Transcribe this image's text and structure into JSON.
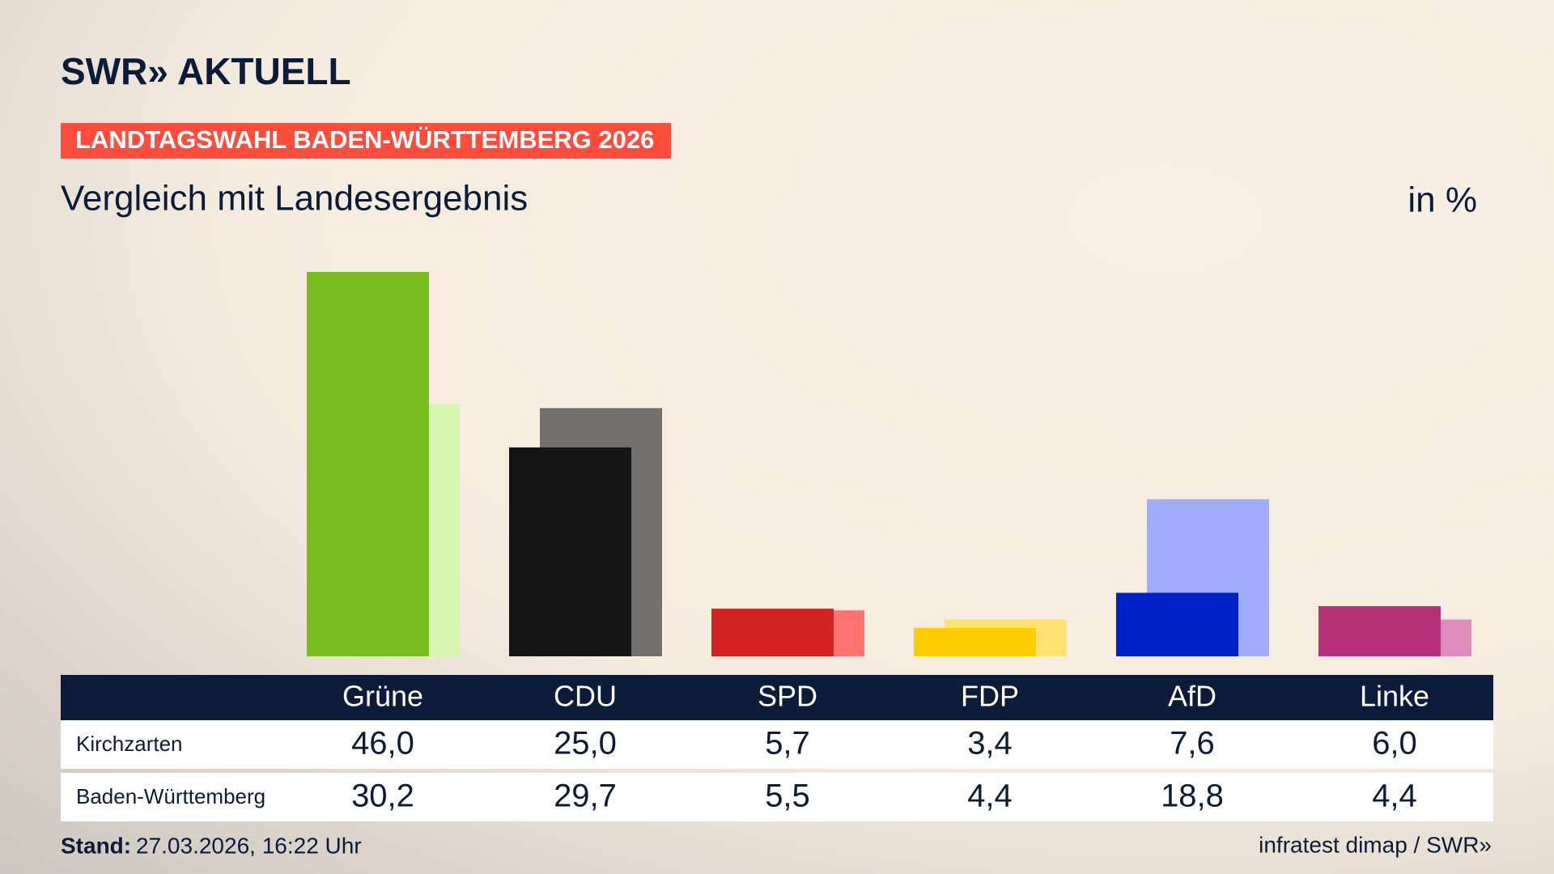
{
  "logo": "SWR» AKTUELL",
  "banner": "LANDTAGSWAHL BADEN-WÜRTTEMBERG 2026",
  "footer": {
    "stand_label": "Stand:",
    "stand_value": "27.03.2026, 16:22 Uhr",
    "source": "infratest dimap / SWR»"
  },
  "chart_data": {
    "type": "bar",
    "title": "Vergleich mit Landesergebnis",
    "unit": "in %",
    "categories": [
      "Grüne",
      "CDU",
      "SPD",
      "FDP",
      "AfD",
      "Linke"
    ],
    "series": [
      {
        "name": "Kirchzarten",
        "colors": [
          "#78bc1e",
          "#141414",
          "#d42222",
          "#ffcc00",
          "#0021c8",
          "#b9307a"
        ],
        "values": [
          46.0,
          25.0,
          5.7,
          3.4,
          7.6,
          6.0
        ],
        "value_labels": [
          "46,0",
          "25,0",
          "5,7",
          "3,4",
          "7,6",
          "6,0"
        ]
      },
      {
        "name": "Baden-Württemberg",
        "colors": [
          "#d6f5b0",
          "#73706e",
          "#ff7370",
          "#ffe270",
          "#9fadfc",
          "#de8bbd"
        ],
        "values": [
          30.2,
          29.7,
          5.5,
          4.4,
          18.8,
          4.4
        ],
        "value_labels": [
          "30,2",
          "29,7",
          "5,5",
          "4,4",
          "18,8",
          "4,4"
        ]
      }
    ]
  }
}
